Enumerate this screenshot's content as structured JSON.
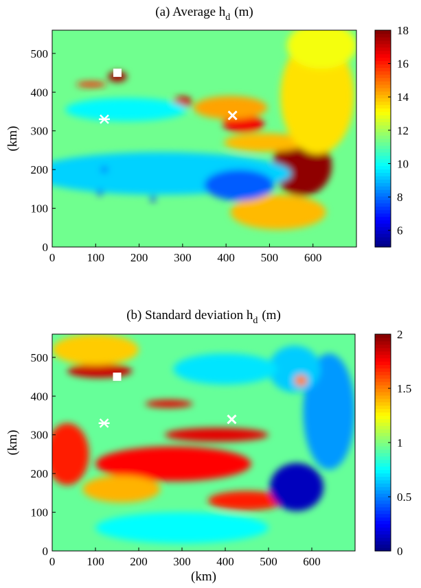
{
  "chart_data": [
    {
      "type": "heatmap",
      "title_main": "(a) Average h",
      "title_sub": "d",
      "title_unit": "(m)",
      "ylabel": "(km)",
      "xlabel": "",
      "xlim": [
        0,
        700
      ],
      "ylim": [
        0,
        560
      ],
      "x_ticks": [
        0,
        100,
        200,
        300,
        400,
        500,
        600
      ],
      "y_ticks": [
        0,
        100,
        200,
        300,
        400,
        500
      ],
      "colorbar": {
        "range": [
          5,
          18
        ],
        "ticks": [
          6,
          8,
          10,
          12,
          14,
          16,
          18
        ]
      },
      "background_value": 11.3,
      "features": [
        {
          "x": 150,
          "y": 440,
          "rx": 22,
          "ry": 14,
          "v": 17.5
        },
        {
          "x": 90,
          "y": 420,
          "rx": 35,
          "ry": 7,
          "v": 16.0
        },
        {
          "x": 300,
          "y": 375,
          "rx": 22,
          "ry": 14,
          "v": 17.0
        },
        {
          "x": 440,
          "y": 318,
          "rx": 48,
          "ry": 22,
          "v": 16.5
        },
        {
          "x": 575,
          "y": 210,
          "rx": 68,
          "ry": 78,
          "v": 17.8
        },
        {
          "x": 410,
          "y": 360,
          "rx": 85,
          "ry": 30,
          "v": 14.3
        },
        {
          "x": 490,
          "y": 270,
          "rx": 95,
          "ry": 24,
          "v": 14.0
        },
        {
          "x": 520,
          "y": 90,
          "rx": 110,
          "ry": 45,
          "v": 14.0
        },
        {
          "x": 610,
          "y": 390,
          "rx": 85,
          "ry": 150,
          "v": 13.5
        },
        {
          "x": 620,
          "y": 520,
          "rx": 80,
          "ry": 60,
          "v": 13.0
        },
        {
          "x": 250,
          "y": 190,
          "rx": 300,
          "ry": 55,
          "v": 9.3
        },
        {
          "x": 430,
          "y": 160,
          "rx": 80,
          "ry": 40,
          "v": 7.8
        },
        {
          "x": 170,
          "y": 355,
          "rx": 140,
          "ry": 30,
          "v": 9.8
        },
        {
          "x": 110,
          "y": 140,
          "rx": 7,
          "ry": 7,
          "v": 6.5
        },
        {
          "x": 232,
          "y": 125,
          "rx": 7,
          "ry": 7,
          "v": 6.5
        },
        {
          "x": 120,
          "y": 200,
          "rx": 8,
          "ry": 8,
          "v": 8.0
        }
      ],
      "markers": [
        {
          "type": "square",
          "x": 150,
          "y": 450
        },
        {
          "type": "asterisk",
          "x": 120,
          "y": 330
        },
        {
          "type": "cross",
          "x": 415,
          "y": 340
        }
      ]
    },
    {
      "type": "heatmap",
      "title_main": "(b) Standard deviation h",
      "title_sub": "d",
      "title_unit": "(m)",
      "ylabel": "(km)",
      "xlabel": "(km)",
      "xlim": [
        0,
        700
      ],
      "ylim": [
        0,
        560
      ],
      "x_ticks": [
        0,
        100,
        200,
        300,
        400,
        500,
        600
      ],
      "y_ticks": [
        0,
        100,
        200,
        300,
        400,
        500
      ],
      "colorbar": {
        "range": [
          0,
          2
        ],
        "ticks": [
          0,
          0.5,
          1,
          1.5,
          2
        ]
      },
      "background_value": 0.95,
      "features": [
        {
          "x": 110,
          "y": 465,
          "rx": 75,
          "ry": 18,
          "v": 1.85
        },
        {
          "x": 270,
          "y": 380,
          "rx": 55,
          "ry": 10,
          "v": 1.8
        },
        {
          "x": 380,
          "y": 300,
          "rx": 120,
          "ry": 18,
          "v": 1.8
        },
        {
          "x": 280,
          "y": 225,
          "rx": 180,
          "ry": 45,
          "v": 1.75
        },
        {
          "x": 35,
          "y": 250,
          "rx": 50,
          "ry": 80,
          "v": 1.7
        },
        {
          "x": 450,
          "y": 130,
          "rx": 90,
          "ry": 25,
          "v": 1.7
        },
        {
          "x": 160,
          "y": 160,
          "rx": 90,
          "ry": 35,
          "v": 1.4
        },
        {
          "x": 565,
          "y": 165,
          "rx": 62,
          "ry": 62,
          "v": 0.12
        },
        {
          "x": 640,
          "y": 360,
          "rx": 60,
          "ry": 150,
          "v": 0.55
        },
        {
          "x": 560,
          "y": 470,
          "rx": 60,
          "ry": 60,
          "v": 0.65
        },
        {
          "x": 100,
          "y": 520,
          "rx": 100,
          "ry": 40,
          "v": 1.35
        },
        {
          "x": 575,
          "y": 440,
          "rx": 15,
          "ry": 15,
          "v": 1.5
        },
        {
          "x": 300,
          "y": 60,
          "rx": 200,
          "ry": 40,
          "v": 0.75
        },
        {
          "x": 400,
          "y": 470,
          "rx": 120,
          "ry": 40,
          "v": 0.7
        }
      ],
      "markers": [
        {
          "type": "square",
          "x": 150,
          "y": 450
        },
        {
          "type": "asterisk",
          "x": 120,
          "y": 330
        },
        {
          "type": "cross",
          "x": 415,
          "y": 340
        }
      ]
    }
  ]
}
